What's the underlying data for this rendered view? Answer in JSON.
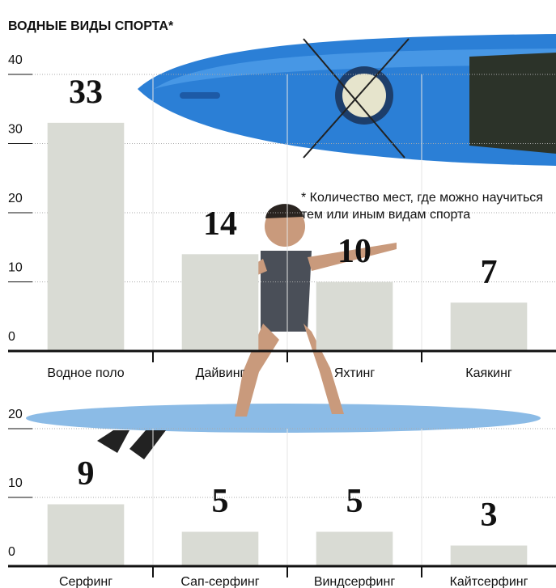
{
  "title": "ВОДНЫЕ ВИДЫ СПОРТА*",
  "note": "* Количество мест, где можно научиться тем или иным видам спорта",
  "chart_data": [
    {
      "type": "bar",
      "categories": [
        "Водное поло",
        "Дайвинг",
        "Яхтинг",
        "Каякинг"
      ],
      "values": [
        33,
        14,
        10,
        7
      ],
      "ylim": [
        0,
        40
      ],
      "yticks": [
        0,
        10,
        20,
        30,
        40
      ],
      "color": "#d9dbd4",
      "grid": true
    },
    {
      "type": "bar",
      "categories": [
        "Серфинг",
        "Сап-серфинг",
        "Виндсерфинг",
        "Кайтсерфинг"
      ],
      "values": [
        9,
        5,
        5,
        3
      ],
      "ylim": [
        0,
        20
      ],
      "yticks": [
        0,
        10,
        20
      ],
      "color": "#d9dbd4",
      "grid": true
    }
  ]
}
